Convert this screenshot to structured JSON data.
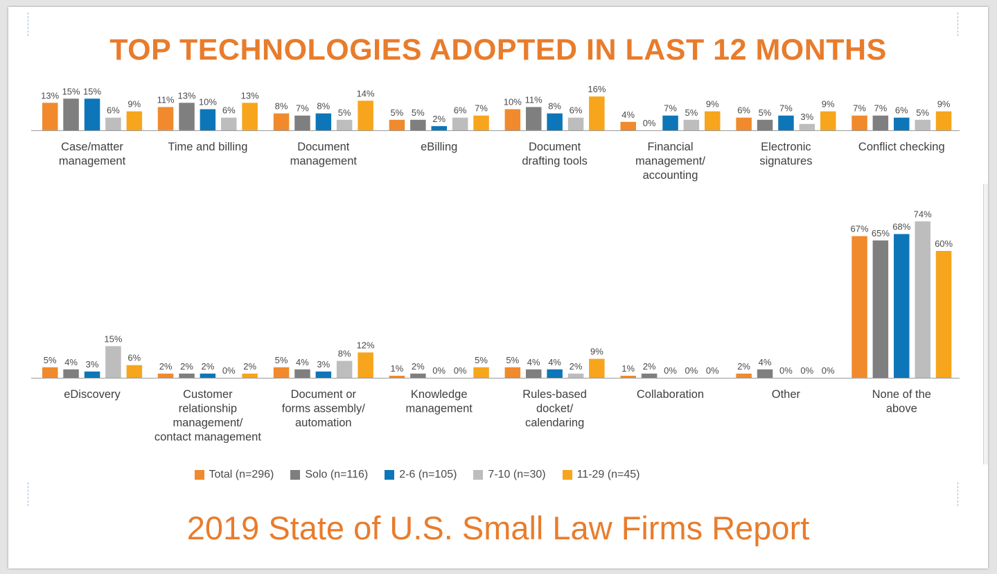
{
  "title": "TOP TECHNOLOGIES ADOPTED IN LAST 12 MONTHS",
  "footer_title": "2019 State of U.S. Small Law Firms Report",
  "colors": {
    "title": "#e87c2c",
    "series": [
      "#f08a2c",
      "#7f7f7f",
      "#0d76b8",
      "#bdbdbd",
      "#f7a51c"
    ]
  },
  "chart_data": {
    "type": "bar",
    "ylim": [
      0,
      80
    ],
    "legend_position": "bottom",
    "series_names": [
      "Total (n=296)",
      "Solo (n=116)",
      "2-6 (n=105)",
      "7-10 (n=30)",
      "11-29 (n=45)"
    ],
    "rows": [
      {
        "groups": [
          {
            "label": [
              "Case/matter",
              "management"
            ],
            "values": [
              13,
              15,
              15,
              6,
              9
            ]
          },
          {
            "label": [
              "Time and billing"
            ],
            "values": [
              11,
              13,
              10,
              6,
              13
            ]
          },
          {
            "label": [
              "Document",
              "management"
            ],
            "values": [
              8,
              7,
              8,
              5,
              14
            ]
          },
          {
            "label": [
              "eBilling"
            ],
            "values": [
              5,
              5,
              2,
              6,
              7
            ]
          },
          {
            "label": [
              "Document",
              "drafting tools"
            ],
            "values": [
              10,
              11,
              8,
              6,
              16
            ]
          },
          {
            "label": [
              "Financial",
              "management/",
              "accounting"
            ],
            "values": [
              4,
              0,
              7,
              5,
              9
            ]
          },
          {
            "label": [
              "Electronic",
              "signatures"
            ],
            "values": [
              6,
              5,
              7,
              3,
              9
            ]
          },
          {
            "label": [
              "Conflict checking"
            ],
            "values": [
              7,
              7,
              6,
              5,
              9
            ]
          }
        ]
      },
      {
        "groups": [
          {
            "label": [
              "eDiscovery"
            ],
            "values": [
              5,
              4,
              3,
              15,
              6
            ]
          },
          {
            "label": [
              "Customer",
              "relationship",
              "management/",
              "contact management"
            ],
            "values": [
              2,
              2,
              2,
              0,
              2
            ]
          },
          {
            "label": [
              "Document or",
              "forms assembly/",
              "automation"
            ],
            "values": [
              5,
              4,
              3,
              8,
              12
            ]
          },
          {
            "label": [
              "Knowledge",
              "management"
            ],
            "values": [
              1,
              2,
              0,
              0,
              5
            ]
          },
          {
            "label": [
              "Rules-based",
              "docket/",
              "calendaring"
            ],
            "values": [
              5,
              4,
              4,
              2,
              9
            ]
          },
          {
            "label": [
              "Collaboration"
            ],
            "values": [
              1,
              2,
              0,
              0,
              0
            ]
          },
          {
            "label": [
              "Other"
            ],
            "values": [
              2,
              4,
              0,
              0,
              0
            ]
          },
          {
            "label": [
              "None of the",
              "above"
            ],
            "values": [
              67,
              65,
              68,
              74,
              60
            ]
          }
        ]
      }
    ]
  }
}
